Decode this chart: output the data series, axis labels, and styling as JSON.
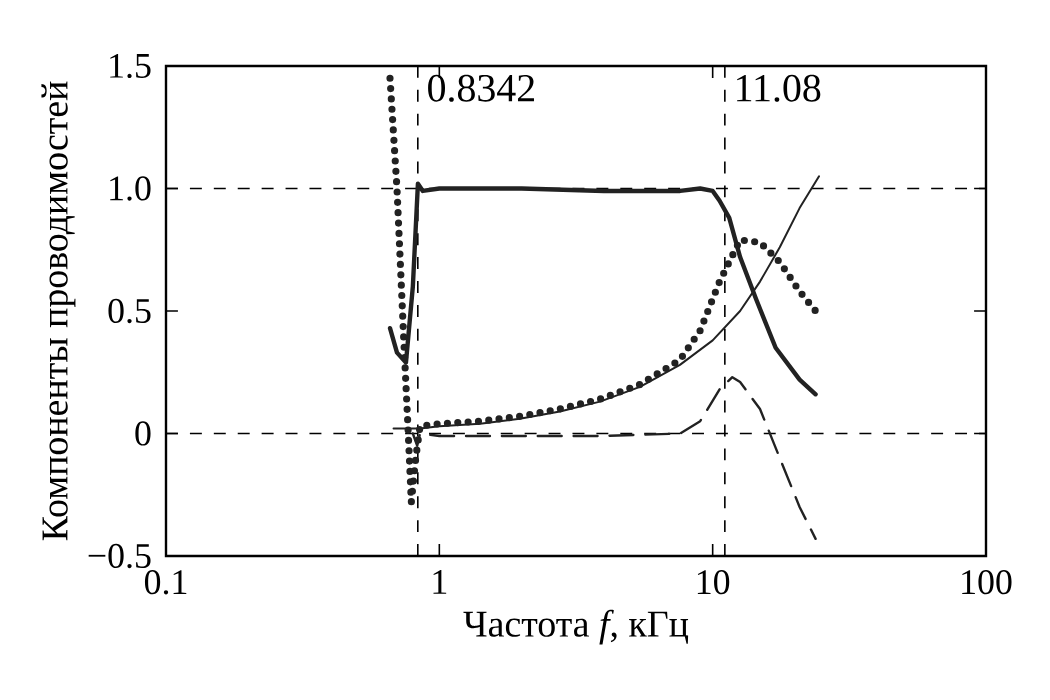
{
  "chart_data": {
    "type": "line",
    "xlabel": "Частота *f*, кГц",
    "ylabel": "Компоненты проводимостей",
    "log": "x",
    "xlim": [
      0.1,
      100
    ],
    "ylim": [
      -0.5,
      1.5
    ],
    "xticks": [
      0.1,
      1,
      10,
      100
    ],
    "yticks": [
      {
        "value": -0.5,
        "label": "−0.5"
      },
      0,
      0.5,
      {
        "value": 1,
        "label": "1.0"
      },
      {
        "value": 1.5,
        "label": "1.5"
      }
    ],
    "grid": false,
    "ref_lines": [
      {
        "axis": "x",
        "value": 0.8342,
        "label": "0.8342",
        "line_style": "dashed",
        "color": "#000000"
      },
      {
        "axis": "x",
        "value": 11.08,
        "label": "11.08",
        "line_style": "dashed",
        "color": "#000000"
      },
      {
        "axis": "y",
        "value": 1,
        "line_style": "dashed",
        "color": "#000000"
      },
      {
        "axis": "y",
        "value": 0,
        "line_style": "dashed",
        "color": "#000000"
      }
    ],
    "series": [
      {
        "color": "#222222",
        "line_style": "solid",
        "x": [
          0.66,
          0.7,
          0.755,
          0.8,
          0.835,
          0.87,
          1.0,
          2,
          4,
          6,
          7.6,
          9,
          10,
          10.6,
          11.5,
          12.6,
          14.4,
          17,
          20.8,
          23.8
        ],
        "values": [
          0.43,
          0.33,
          0.29,
          0.6,
          1.02,
          0.99,
          1.0,
          1.0,
          0.99,
          0.99,
          0.99,
          1.0,
          0.99,
          0.95,
          0.88,
          0.72,
          0.55,
          0.35,
          0.22,
          0.16
        ]
      },
      {
        "color": "#222222",
        "line_style": "solid",
        "x": [
          0.68,
          0.85,
          1.0,
          1.41,
          1.97,
          2.76,
          3.87,
          5.42,
          7.59,
          10,
          12.6,
          14.9,
          17.6,
          20.8,
          24.5
        ],
        "values": [
          0.02,
          0.02,
          0.03,
          0.04,
          0.06,
          0.09,
          0.13,
          0.19,
          0.28,
          0.38,
          0.5,
          0.62,
          0.76,
          0.92,
          1.05
        ]
      },
      {
        "color": "#222222",
        "line_style": "dotted",
        "x": [
          0.66,
          0.7,
          0.74,
          0.77,
          0.79,
          0.82,
          0.85,
          1.0,
          1.41,
          1.97,
          2.76,
          3.87,
          5.42,
          7.59,
          9,
          10.6,
          12.6,
          14.9,
          17.6,
          20.8,
          23.8
        ],
        "values": [
          1.45,
          1.0,
          0.4,
          0.0,
          -0.28,
          -0.1,
          0.03,
          0.04,
          0.05,
          0.07,
          0.1,
          0.14,
          0.2,
          0.3,
          0.42,
          0.62,
          0.79,
          0.78,
          0.7,
          0.58,
          0.5
        ]
      },
      {
        "color": "#222222",
        "line_style": "dashed",
        "x": [
          0.8,
          0.83,
          0.85,
          1.0,
          2,
          4,
          7.6,
          9,
          10.6,
          11.8,
          12.6,
          14.9,
          17.6,
          20.8,
          23.8
        ],
        "values": [
          0.0,
          -0.05,
          0.0,
          -0.01,
          -0.01,
          -0.01,
          0.0,
          0.05,
          0.18,
          0.23,
          0.21,
          0.1,
          -0.1,
          -0.3,
          -0.43
        ]
      }
    ]
  }
}
